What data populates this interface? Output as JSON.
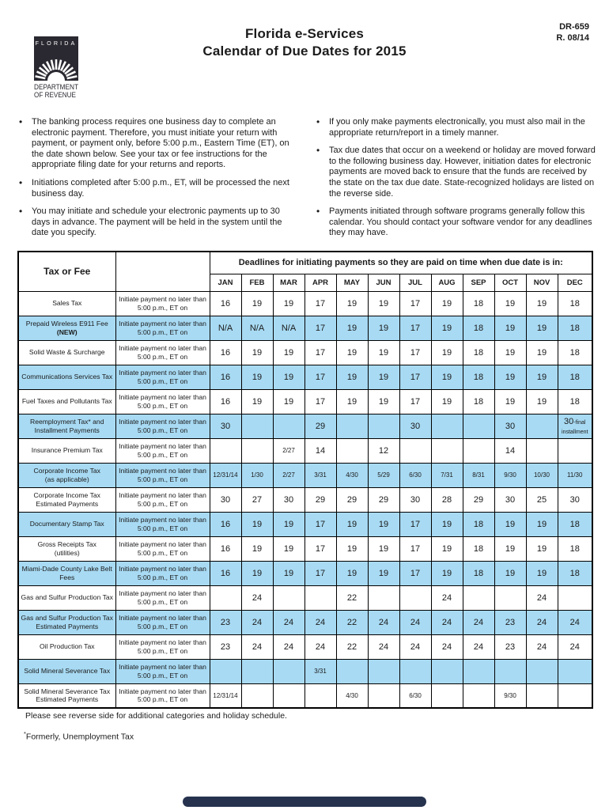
{
  "header": {
    "logo_state": "FLORIDA",
    "logo_caption_line1": "DEPARTMENT",
    "logo_caption_line2": "OF REVENUE",
    "title_line1": "Florida e-Services",
    "title_line2": "Calendar of Due Dates for 2015",
    "form_number": "DR-659",
    "revision": "R. 08/14"
  },
  "notes": {
    "left": [
      "The banking process requires one business day to complete an electronic payment. Therefore, you must initiate your return with payment, or payment only, before 5:00 p.m., Eastern Time (ET), on the date shown below.  See your tax or fee instructions for the appropriate filing date for your returns and reports.",
      "Initiations completed after 5:00 p.m., ET, will be processed the next business day.",
      "You may initiate and schedule your electronic payments up to 30 days in advance.  The payment will be held in the system until the date you specify."
    ],
    "right": [
      "If you only make payments electronically, you must also mail in the appropriate return/report in a timely manner.",
      "Tax due dates that occur on a weekend or holiday are moved forward to the following business day.  However, initiation dates for electronic payments are moved back to ensure that the funds are received by the state on the tax due date.  State-recognized holidays are listed on the reverse side.",
      "Payments initiated through software programs generally follow this calendar.  You should contact your software vendor for any deadlines they may have."
    ]
  },
  "table": {
    "col1_header": "Tax or Fee",
    "banner": "Deadlines for initiating payments so they are paid on time when due date is in:",
    "months": [
      "JAN",
      "FEB",
      "MAR",
      "APR",
      "MAY",
      "JUN",
      "JUL",
      "AUG",
      "SEP",
      "OCT",
      "NOV",
      "DEC"
    ],
    "instruction_lines": [
      "Initiate payment no later than",
      "5:00 p.m., ET on"
    ],
    "rows": [
      {
        "label_lines": [
          "Sales Tax"
        ],
        "highlight": false,
        "values": [
          "16",
          "19",
          "19",
          "17",
          "19",
          "19",
          "17",
          "19",
          "18",
          "19",
          "19",
          "18"
        ]
      },
      {
        "label_lines": [
          "Prepaid Wireless E911 Fee",
          "(NEW)"
        ],
        "highlight": true,
        "na_cells": [
          0,
          1,
          2
        ],
        "values": [
          "N/A",
          "N/A",
          "N/A",
          "17",
          "19",
          "19",
          "17",
          "19",
          "18",
          "19",
          "19",
          "18"
        ]
      },
      {
        "label_lines": [
          "Solid Waste & Surcharge"
        ],
        "highlight": false,
        "values": [
          "16",
          "19",
          "19",
          "17",
          "19",
          "19",
          "17",
          "19",
          "18",
          "19",
          "19",
          "18"
        ]
      },
      {
        "label_lines": [
          "Communications Services Tax"
        ],
        "highlight": true,
        "values": [
          "16",
          "19",
          "19",
          "17",
          "19",
          "19",
          "17",
          "19",
          "18",
          "19",
          "19",
          "18"
        ]
      },
      {
        "label_lines": [
          "Fuel Taxes and Pollutants Tax"
        ],
        "highlight": false,
        "values": [
          "16",
          "19",
          "19",
          "17",
          "19",
          "19",
          "17",
          "19",
          "18",
          "19",
          "19",
          "18"
        ]
      },
      {
        "label_lines": [
          "Reemployment Tax* and",
          "Installment Payments"
        ],
        "highlight": true,
        "values": [
          "30",
          "",
          "",
          "29",
          "",
          "",
          "30",
          "",
          "",
          "30",
          "",
          "30-final installment"
        ]
      },
      {
        "label_lines": [
          "Insurance Premium Tax"
        ],
        "highlight": false,
        "values": [
          "",
          "",
          "2/27",
          "14",
          "",
          "12",
          "",
          "",
          "",
          "14",
          "",
          ""
        ]
      },
      {
        "label_lines": [
          "Corporate Income Tax",
          "(as applicable)"
        ],
        "highlight": true,
        "values": [
          "12/31/14",
          "1/30",
          "2/27",
          "3/31",
          "4/30",
          "5/29",
          "6/30",
          "7/31",
          "8/31",
          "9/30",
          "10/30",
          "11/30"
        ]
      },
      {
        "label_lines": [
          "Corporate Income Tax",
          "Estimated Payments"
        ],
        "highlight": false,
        "values": [
          "30",
          "27",
          "30",
          "29",
          "29",
          "29",
          "30",
          "28",
          "29",
          "30",
          "25",
          "30"
        ]
      },
      {
        "label_lines": [
          "Documentary Stamp Tax"
        ],
        "highlight": true,
        "values": [
          "16",
          "19",
          "19",
          "17",
          "19",
          "19",
          "17",
          "19",
          "18",
          "19",
          "19",
          "18"
        ]
      },
      {
        "label_lines": [
          "Gross Receipts Tax",
          "(utilities)"
        ],
        "highlight": false,
        "values": [
          "16",
          "19",
          "19",
          "17",
          "19",
          "19",
          "17",
          "19",
          "18",
          "19",
          "19",
          "18"
        ]
      },
      {
        "label_lines": [
          "Miami-Dade County Lake Belt",
          "Fees"
        ],
        "highlight": true,
        "values": [
          "16",
          "19",
          "19",
          "17",
          "19",
          "19",
          "17",
          "19",
          "18",
          "19",
          "19",
          "18"
        ]
      },
      {
        "label_lines": [
          "Gas and Sulfur Production Tax"
        ],
        "highlight": false,
        "values": [
          "",
          "24",
          "",
          "",
          "22",
          "",
          "",
          "24",
          "",
          "",
          "24",
          ""
        ]
      },
      {
        "label_lines": [
          "Gas and Sulfur Production Tax",
          "Estimated Payments"
        ],
        "highlight": true,
        "values": [
          "23",
          "24",
          "24",
          "24",
          "22",
          "24",
          "24",
          "24",
          "24",
          "23",
          "24",
          "24"
        ]
      },
      {
        "label_lines": [
          "Oil Production Tax"
        ],
        "highlight": false,
        "values": [
          "23",
          "24",
          "24",
          "24",
          "22",
          "24",
          "24",
          "24",
          "24",
          "23",
          "24",
          "24"
        ]
      },
      {
        "label_lines": [
          "Solid Mineral Severance Tax"
        ],
        "highlight": true,
        "values": [
          "",
          "",
          "",
          "3/31",
          "",
          "",
          "",
          "",
          "",
          "",
          "",
          ""
        ]
      },
      {
        "label_lines": [
          "Solid Mineral Severance Tax",
          "Estimated Payments"
        ],
        "highlight": false,
        "values": [
          "12/31/14",
          "",
          "",
          "",
          "4/30",
          "",
          "6/30",
          "",
          "",
          "9/30",
          "",
          ""
        ]
      }
    ]
  },
  "footer": {
    "note1": "Please see reverse side for additional categories and holiday schedule.",
    "note2_asterisk": "*",
    "note2": "Formerly, Unemployment Tax"
  },
  "colors": {
    "row_highlight": "#a8daf3",
    "na_cell": "#c8c8c8",
    "home_bar": "#26324e",
    "text": "#1b1b1b"
  }
}
